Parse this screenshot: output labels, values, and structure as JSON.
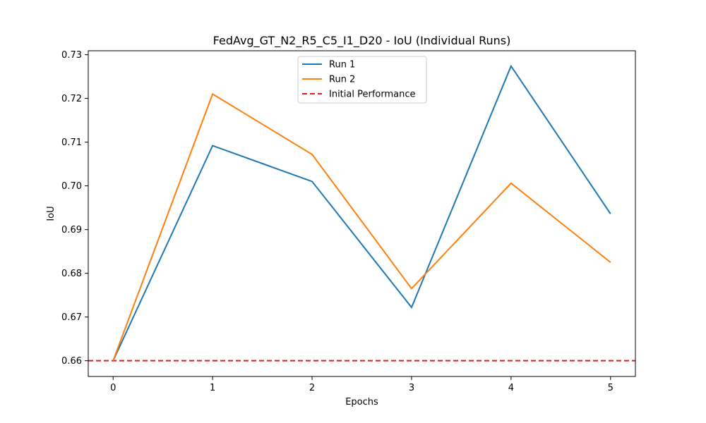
{
  "chart_data": {
    "type": "line",
    "title": "FedAvg_GT_N2_R5_C5_I1_D20 - IoU (Individual Runs)",
    "xlabel": "Epochs",
    "ylabel": "IoU",
    "x": [
      0,
      1,
      2,
      3,
      4,
      5
    ],
    "xticks": [
      "0",
      "1",
      "2",
      "3",
      "4",
      "5"
    ],
    "yticks": [
      "0.66",
      "0.67",
      "0.68",
      "0.69",
      "0.70",
      "0.71",
      "0.72",
      "0.73"
    ],
    "xlim": [
      -0.25,
      5.25
    ],
    "ylim": [
      0.6564,
      0.7309
    ],
    "grid": false,
    "legend_position": "top-center",
    "series": [
      {
        "name": "Run 1",
        "color": "#1f77b4",
        "style": "solid",
        "values": [
          0.66,
          0.7092,
          0.701,
          0.6722,
          0.7274,
          0.6936
        ]
      },
      {
        "name": "Run 2",
        "color": "#ff7f0e",
        "style": "solid",
        "values": [
          0.66,
          0.721,
          0.7072,
          0.6765,
          0.7006,
          0.6825
        ]
      }
    ],
    "reference_line": {
      "name": "Initial Performance",
      "color": "#e31a1c",
      "style": "dashed",
      "y": 0.66
    }
  }
}
